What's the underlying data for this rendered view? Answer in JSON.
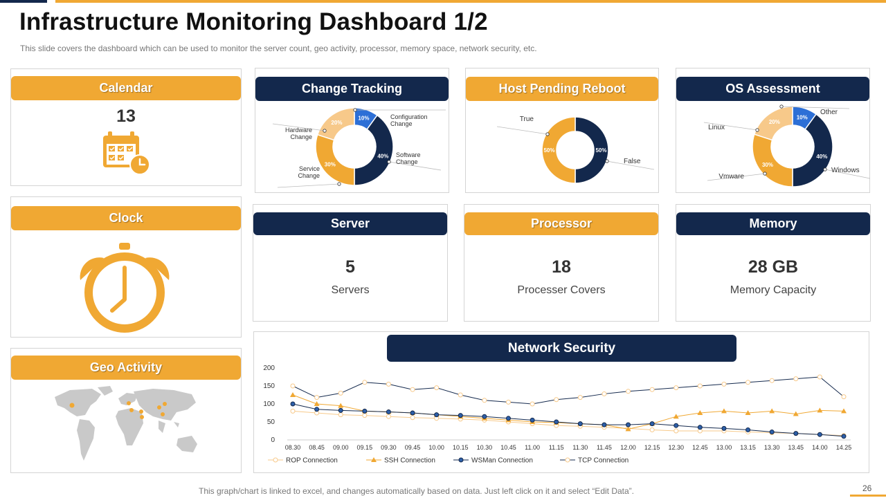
{
  "slide": {
    "title": "Infrastructure Monitoring Dashboard 1/2",
    "subtitle": "This slide covers the dashboard which can be used to monitor the server count, geo activity, processor, memory space, network security, etc.",
    "footer": "This graph/chart is linked to excel, and changes automatically based on data. Just left click on it and select “Edit Data”.",
    "page_number": "26"
  },
  "colors": {
    "gold": "#f0a833",
    "navy": "#13284c",
    "light_gold": "#f7c98a",
    "blue": "#2d6fd6"
  },
  "calendar": {
    "title": "Calendar",
    "value": "13",
    "icon": "calendar-clock-icon"
  },
  "clock": {
    "title": "Clock",
    "icon": "alarm-clock-icon"
  },
  "geo": {
    "title": "Geo Activity",
    "icon": "world-map-icon"
  },
  "change_tracking": {
    "title": "Change Tracking",
    "slices": [
      {
        "label": "Configuration Change",
        "line1": "Configuration",
        "line2": "Change",
        "value": 10,
        "text": "10%"
      },
      {
        "label": "Software Change",
        "line1": "Software",
        "line2": "Change",
        "value": 40,
        "text": "40%"
      },
      {
        "label": "Service Change",
        "line1": "Service",
        "line2": "Change",
        "value": 30,
        "text": "30%"
      },
      {
        "label": "Hardware Change",
        "line1": "Hardware",
        "line2": "Change",
        "value": 20,
        "text": "20%"
      }
    ]
  },
  "host_reboot": {
    "title": "Host Pending Reboot",
    "slices": [
      {
        "label": "False",
        "value": 50,
        "text": "50%"
      },
      {
        "label": "True",
        "value": 50,
        "text": "50%"
      }
    ]
  },
  "os_assessment": {
    "title": "OS Assessment",
    "slices": [
      {
        "label": "Other",
        "value": 10,
        "text": "10%"
      },
      {
        "label": "Windows",
        "value": 40,
        "text": "40%"
      },
      {
        "label": "Vmware",
        "value": 30,
        "text": "30%"
      },
      {
        "label": "Linux",
        "value": 20,
        "text": "20%"
      }
    ]
  },
  "server": {
    "title": "Server",
    "value": "5",
    "label": "Servers"
  },
  "processor": {
    "title": "Processor",
    "value": "18",
    "label": "Processer Covers"
  },
  "memory": {
    "title": "Memory",
    "value": "28 GB",
    "label": "Memory Capacity"
  },
  "network": {
    "title": "Network Security"
  },
  "chart_data": {
    "type": "line",
    "title": "Network Security",
    "categories": [
      "08.30",
      "08.45",
      "09.00",
      "09.15",
      "09.30",
      "09.45",
      "10.00",
      "10.15",
      "10.30",
      "10.45",
      "11.00",
      "11.15",
      "11.30",
      "11.45",
      "12.00",
      "12.15",
      "12.30",
      "12.45",
      "13.00",
      "13.15",
      "13.30",
      "13.45",
      "14.00",
      "14.25"
    ],
    "ylim": [
      0,
      200
    ],
    "yticks": [
      0,
      50,
      100,
      150,
      200
    ],
    "series": [
      {
        "name": "ROP Connection",
        "marker": "circle-open",
        "values": [
          80,
          75,
          70,
          68,
          65,
          62,
          60,
          58,
          55,
          50,
          45,
          40,
          38,
          35,
          32,
          28,
          25,
          25,
          25,
          22,
          20,
          18,
          15,
          12
        ]
      },
      {
        "name": "SSH Connection",
        "marker": "triangle",
        "values": [
          125,
          100,
          95,
          80,
          78,
          75,
          70,
          65,
          60,
          55,
          50,
          48,
          45,
          42,
          30,
          45,
          65,
          75,
          80,
          75,
          80,
          72,
          82,
          80
        ]
      },
      {
        "name": "WSMan Connection",
        "marker": "circle-filled",
        "values": [
          100,
          85,
          82,
          80,
          78,
          75,
          70,
          68,
          65,
          60,
          55,
          50,
          45,
          42,
          42,
          45,
          40,
          35,
          32,
          28,
          22,
          18,
          15,
          10
        ]
      },
      {
        "name": "TCP Connection",
        "marker": "circle-open",
        "values": [
          150,
          118,
          130,
          160,
          155,
          140,
          145,
          125,
          110,
          105,
          100,
          112,
          118,
          128,
          135,
          140,
          145,
          150,
          155,
          160,
          165,
          170,
          175,
          120
        ]
      }
    ]
  }
}
